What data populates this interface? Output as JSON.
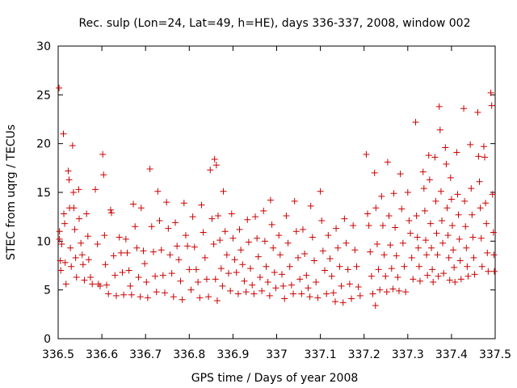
{
  "chart_data": {
    "type": "scatter",
    "title": "Rec. sulp (Lon=24, Lat=49, h=HE), days 336-337, 2008, window 002",
    "xlabel": "GPS time / Days of year 2008",
    "ylabel": "STEC from uqrg / TECUs",
    "xlim": [
      336.5,
      337.5
    ],
    "ylim": [
      0,
      30
    ],
    "grid": false,
    "legend": "none",
    "marker": "plus",
    "color": "#cc0000",
    "xticks": [
      {
        "value": 336.5,
        "label": "336.5"
      },
      {
        "value": 336.6,
        "label": "336.6"
      },
      {
        "value": 336.7,
        "label": "336.7"
      },
      {
        "value": 336.8,
        "label": "336.8"
      },
      {
        "value": 336.9,
        "label": "336.9"
      },
      {
        "value": 337.0,
        "label": "337"
      },
      {
        "value": 337.1,
        "label": "337.1"
      },
      {
        "value": 337.2,
        "label": "337.2"
      },
      {
        "value": 337.3,
        "label": "337.3"
      },
      {
        "value": 337.4,
        "label": "337.4"
      },
      {
        "value": 337.5,
        "label": "337.5"
      }
    ],
    "yticks": [
      {
        "value": 0,
        "label": "0"
      },
      {
        "value": 5,
        "label": "5"
      },
      {
        "value": 10,
        "label": "10"
      },
      {
        "value": 15,
        "label": "15"
      },
      {
        "value": 20,
        "label": "20"
      },
      {
        "value": 25,
        "label": "25"
      },
      {
        "value": 30,
        "label": "30"
      }
    ],
    "points": [
      [
        336.502,
        25.7
      ],
      [
        336.503,
        11.0
      ],
      [
        336.503,
        10.2
      ],
      [
        336.505,
        8.0
      ],
      [
        336.506,
        7.0
      ],
      [
        336.508,
        9.7
      ],
      [
        336.512,
        21.0
      ],
      [
        336.513,
        12.8
      ],
      [
        336.515,
        11.8
      ],
      [
        336.516,
        7.8
      ],
      [
        336.518,
        5.6
      ],
      [
        336.523,
        17.2
      ],
      [
        336.525,
        16.3
      ],
      [
        336.526,
        13.4
      ],
      [
        336.528,
        9.3
      ],
      [
        336.53,
        7.4
      ],
      [
        336.533,
        19.8
      ],
      [
        336.535,
        15.0
      ],
      [
        336.536,
        13.4
      ],
      [
        336.538,
        11.2
      ],
      [
        336.54,
        8.3
      ],
      [
        336.542,
        6.3
      ],
      [
        336.547,
        15.3
      ],
      [
        336.548,
        12.3
      ],
      [
        336.552,
        9.8
      ],
      [
        336.555,
        8.6
      ],
      [
        336.557,
        7.6
      ],
      [
        336.56,
        6.0
      ],
      [
        336.565,
        12.8
      ],
      [
        336.568,
        10.5
      ],
      [
        336.57,
        8.1
      ],
      [
        336.574,
        6.3
      ],
      [
        336.578,
        5.6
      ],
      [
        336.585,
        15.3
      ],
      [
        336.59,
        9.7
      ],
      [
        336.592,
        5.6
      ],
      [
        336.596,
        5.4
      ],
      [
        336.602,
        18.9
      ],
      [
        336.604,
        16.8
      ],
      [
        336.606,
        10.6
      ],
      [
        336.608,
        7.6
      ],
      [
        336.611,
        5.5
      ],
      [
        336.615,
        4.6
      ],
      [
        336.62,
        13.2
      ],
      [
        336.622,
        12.9
      ],
      [
        336.627,
        8.5
      ],
      [
        336.63,
        6.5
      ],
      [
        336.633,
        4.4
      ],
      [
        336.64,
        10.4
      ],
      [
        336.644,
        8.8
      ],
      [
        336.647,
        6.8
      ],
      [
        336.65,
        4.5
      ],
      [
        336.655,
        10.2
      ],
      [
        336.658,
        8.8
      ],
      [
        336.662,
        7.0
      ],
      [
        336.665,
        5.4
      ],
      [
        336.668,
        4.5
      ],
      [
        336.672,
        13.8
      ],
      [
        336.676,
        11.5
      ],
      [
        336.68,
        9.3
      ],
      [
        336.684,
        6.3
      ],
      [
        336.688,
        4.3
      ],
      [
        336.69,
        13.4
      ],
      [
        336.695,
        9.0
      ],
      [
        336.698,
        7.7
      ],
      [
        336.702,
        5.8
      ],
      [
        336.705,
        4.2
      ],
      [
        336.71,
        17.4
      ],
      [
        336.714,
        11.5
      ],
      [
        336.718,
        8.9
      ],
      [
        336.722,
        6.4
      ],
      [
        336.725,
        4.8
      ],
      [
        336.728,
        15.1
      ],
      [
        336.732,
        12.1
      ],
      [
        336.736,
        9.1
      ],
      [
        336.74,
        6.5
      ],
      [
        336.744,
        4.7
      ],
      [
        336.748,
        14.0
      ],
      [
        336.752,
        11.3
      ],
      [
        336.756,
        8.6
      ],
      [
        336.76,
        6.7
      ],
      [
        336.764,
        4.3
      ],
      [
        336.768,
        11.9
      ],
      [
        336.772,
        9.5
      ],
      [
        336.776,
        8.1
      ],
      [
        336.78,
        5.9
      ],
      [
        336.784,
        4.0
      ],
      [
        336.788,
        13.9
      ],
      [
        336.792,
        10.6
      ],
      [
        336.796,
        9.5
      ],
      [
        336.8,
        7.1
      ],
      [
        336.804,
        5.0
      ],
      [
        336.808,
        12.5
      ],
      [
        336.812,
        9.4
      ],
      [
        336.816,
        7.1
      ],
      [
        336.82,
        5.8
      ],
      [
        336.824,
        4.2
      ],
      [
        336.828,
        13.7
      ],
      [
        336.832,
        10.9
      ],
      [
        336.836,
        8.3
      ],
      [
        336.84,
        6.1
      ],
      [
        336.844,
        4.3
      ],
      [
        336.848,
        17.3
      ],
      [
        336.852,
        12.3
      ],
      [
        336.856,
        9.7
      ],
      [
        336.86,
        6.1
      ],
      [
        336.864,
        3.9
      ],
      [
        336.858,
        18.4
      ],
      [
        336.862,
        17.8
      ],
      [
        336.866,
        12.6
      ],
      [
        336.87,
        10.1
      ],
      [
        336.873,
        7.2
      ],
      [
        336.876,
        5.4
      ],
      [
        336.878,
        15.1
      ],
      [
        336.882,
        11.0
      ],
      [
        336.886,
        8.6
      ],
      [
        336.89,
        6.7
      ],
      [
        336.894,
        4.9
      ],
      [
        336.897,
        12.8
      ],
      [
        336.9,
        10.3
      ],
      [
        336.904,
        8.1
      ],
      [
        336.908,
        6.8
      ],
      [
        336.912,
        4.6
      ],
      [
        336.915,
        11.2
      ],
      [
        336.918,
        9.1
      ],
      [
        336.922,
        7.6
      ],
      [
        336.926,
        5.9
      ],
      [
        336.93,
        4.8
      ],
      [
        336.933,
        12.2
      ],
      [
        336.936,
        9.9
      ],
      [
        336.94,
        7.2
      ],
      [
        336.944,
        5.5
      ],
      [
        336.948,
        4.6
      ],
      [
        336.951,
        12.5
      ],
      [
        336.955,
        10.3
      ],
      [
        336.958,
        8.4
      ],
      [
        336.962,
        6.3
      ],
      [
        336.966,
        4.9
      ],
      [
        336.97,
        13.1
      ],
      [
        336.973,
        10.0
      ],
      [
        336.976,
        7.4
      ],
      [
        336.98,
        5.8
      ],
      [
        336.984,
        4.4
      ],
      [
        336.986,
        14.2
      ],
      [
        336.989,
        11.7
      ],
      [
        336.992,
        9.3
      ],
      [
        336.995,
        6.8
      ],
      [
        336.998,
        5.2
      ],
      [
        337.005,
        10.6
      ],
      [
        337.008,
        8.6
      ],
      [
        337.012,
        6.6
      ],
      [
        337.015,
        5.4
      ],
      [
        337.018,
        4.1
      ],
      [
        337.022,
        12.6
      ],
      [
        337.026,
        9.8
      ],
      [
        337.03,
        7.4
      ],
      [
        337.034,
        5.5
      ],
      [
        337.038,
        4.6
      ],
      [
        337.041,
        14.1
      ],
      [
        337.045,
        11.0
      ],
      [
        337.049,
        8.3
      ],
      [
        337.053,
        6.1
      ],
      [
        337.057,
        4.6
      ],
      [
        337.06,
        11.2
      ],
      [
        337.064,
        8.7
      ],
      [
        337.068,
        6.5
      ],
      [
        337.072,
        5.2
      ],
      [
        337.076,
        4.3
      ],
      [
        337.078,
        13.6
      ],
      [
        337.082,
        10.4
      ],
      [
        337.086,
        8.0
      ],
      [
        337.09,
        5.8
      ],
      [
        337.094,
        4.2
      ],
      [
        337.1,
        15.1
      ],
      [
        337.103,
        12.1
      ],
      [
        337.106,
        9.0
      ],
      [
        337.11,
        7.0
      ],
      [
        337.114,
        4.6
      ],
      [
        337.118,
        10.6
      ],
      [
        337.122,
        8.2
      ],
      [
        337.126,
        6.4
      ],
      [
        337.13,
        4.7
      ],
      [
        337.134,
        3.8
      ],
      [
        337.136,
        11.3
      ],
      [
        337.14,
        9.3
      ],
      [
        337.144,
        7.4
      ],
      [
        337.148,
        5.4
      ],
      [
        337.152,
        3.7
      ],
      [
        337.155,
        12.3
      ],
      [
        337.159,
        9.8
      ],
      [
        337.163,
        7.1
      ],
      [
        337.167,
        5.6
      ],
      [
        337.171,
        4.1
      ],
      [
        337.175,
        11.6
      ],
      [
        337.179,
        9.1
      ],
      [
        337.183,
        7.4
      ],
      [
        337.187,
        5.3
      ],
      [
        337.191,
        4.4
      ],
      [
        337.205,
        18.9
      ],
      [
        337.208,
        12.8
      ],
      [
        337.211,
        11.6
      ],
      [
        337.214,
        8.9
      ],
      [
        337.217,
        6.4
      ],
      [
        337.22,
        4.6
      ],
      [
        337.224,
        17.0
      ],
      [
        337.227,
        13.4
      ],
      [
        337.23,
        9.7
      ],
      [
        337.233,
        7.1
      ],
      [
        337.236,
        5.0
      ],
      [
        337.226,
        3.4
      ],
      [
        337.24,
        14.6
      ],
      [
        337.243,
        11.6
      ],
      [
        337.246,
        8.6
      ],
      [
        337.249,
        6.4
      ],
      [
        337.252,
        4.8
      ],
      [
        337.254,
        18.1
      ],
      [
        337.257,
        12.6
      ],
      [
        337.26,
        9.6
      ],
      [
        337.263,
        7.2
      ],
      [
        337.266,
        5.1
      ],
      [
        337.268,
        14.9
      ],
      [
        337.271,
        11.4
      ],
      [
        337.274,
        8.5
      ],
      [
        337.277,
        6.3
      ],
      [
        337.28,
        4.9
      ],
      [
        337.283,
        16.9
      ],
      [
        337.286,
        13.3
      ],
      [
        337.289,
        9.8
      ],
      [
        337.292,
        7.4
      ],
      [
        337.295,
        4.8
      ],
      [
        337.3,
        15.0
      ],
      [
        337.303,
        12.1
      ],
      [
        337.306,
        10.8
      ],
      [
        337.309,
        8.3
      ],
      [
        337.312,
        6.1
      ],
      [
        337.318,
        22.2
      ],
      [
        337.32,
        12.6
      ],
      [
        337.322,
        10.4
      ],
      [
        337.324,
        9.3
      ],
      [
        337.326,
        7.4
      ],
      [
        337.328,
        5.9
      ],
      [
        337.335,
        17.1
      ],
      [
        337.337,
        15.4
      ],
      [
        337.339,
        13.1
      ],
      [
        337.341,
        10.1
      ],
      [
        337.343,
        8.6
      ],
      [
        337.345,
        6.5
      ],
      [
        337.348,
        18.8
      ],
      [
        337.35,
        16.3
      ],
      [
        337.352,
        11.8
      ],
      [
        337.354,
        9.3
      ],
      [
        337.356,
        7.1
      ],
      [
        337.358,
        5.8
      ],
      [
        337.362,
        18.6
      ],
      [
        337.364,
        14.1
      ],
      [
        337.366,
        10.8
      ],
      [
        337.368,
        8.6
      ],
      [
        337.37,
        6.4
      ],
      [
        337.372,
        23.8
      ],
      [
        337.374,
        21.4
      ],
      [
        337.376,
        15.1
      ],
      [
        337.378,
        12.1
      ],
      [
        337.38,
        9.8
      ],
      [
        337.382,
        6.7
      ],
      [
        337.386,
        19.6
      ],
      [
        337.388,
        17.9
      ],
      [
        337.39,
        13.4
      ],
      [
        337.392,
        10.6
      ],
      [
        337.394,
        8.3
      ],
      [
        337.396,
        6.0
      ],
      [
        337.398,
        16.5
      ],
      [
        337.4,
        14.3
      ],
      [
        337.402,
        11.6
      ],
      [
        337.404,
        9.1
      ],
      [
        337.406,
        7.3
      ],
      [
        337.408,
        5.8
      ],
      [
        337.412,
        19.1
      ],
      [
        337.414,
        14.8
      ],
      [
        337.416,
        12.7
      ],
      [
        337.418,
        10.2
      ],
      [
        337.42,
        8.0
      ],
      [
        337.422,
        6.1
      ],
      [
        337.428,
        23.6
      ],
      [
        337.43,
        14.1
      ],
      [
        337.432,
        11.5
      ],
      [
        337.434,
        9.3
      ],
      [
        337.436,
        7.4
      ],
      [
        337.438,
        6.4
      ],
      [
        337.443,
        19.9
      ],
      [
        337.445,
        15.4
      ],
      [
        337.447,
        12.7
      ],
      [
        337.449,
        10.4
      ],
      [
        337.451,
        8.3
      ],
      [
        337.453,
        6.6
      ],
      [
        337.46,
        23.2
      ],
      [
        337.462,
        18.7
      ],
      [
        337.464,
        16.1
      ],
      [
        337.466,
        13.4
      ],
      [
        337.468,
        10.3
      ],
      [
        337.47,
        7.4
      ],
      [
        337.474,
        19.7
      ],
      [
        337.476,
        18.6
      ],
      [
        337.478,
        13.9
      ],
      [
        337.48,
        11.8
      ],
      [
        337.482,
        8.8
      ],
      [
        337.484,
        6.9
      ],
      [
        337.49,
        25.2
      ],
      [
        337.492,
        23.9
      ],
      [
        337.494,
        14.8
      ],
      [
        337.496,
        10.9
      ],
      [
        337.497,
        8.6
      ],
      [
        337.498,
        6.9
      ]
    ]
  }
}
